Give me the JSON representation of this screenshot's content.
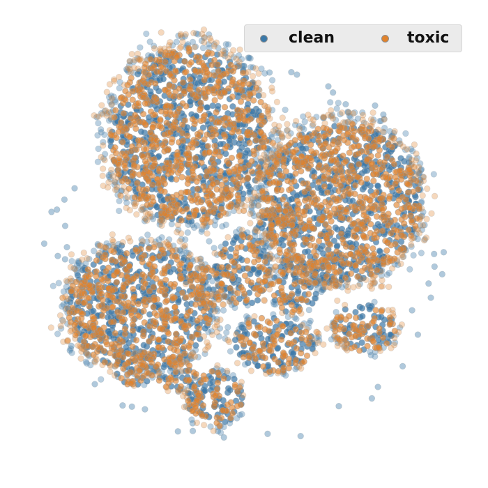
{
  "chart_data": {
    "type": "scatter",
    "title": "",
    "xlabel": "",
    "ylabel": "",
    "axes_visible": false,
    "grid": false,
    "legend_position": "top-right",
    "legend_columns": 2,
    "series": [
      {
        "name": "clean",
        "color": "#3a78a8",
        "edge_color": "#8a9aa6"
      },
      {
        "name": "toxic",
        "color": "#e0822c",
        "edge_color": "#9a9a9a"
      }
    ],
    "clusters": [
      {
        "x": 0.25,
        "y": 0.65,
        "rx": 0.18,
        "ry": 0.16,
        "density": 1.0
      },
      {
        "x": 0.37,
        "y": 0.24,
        "rx": 0.2,
        "ry": 0.22,
        "density": 1.0
      },
      {
        "x": 0.73,
        "y": 0.4,
        "rx": 0.2,
        "ry": 0.2,
        "density": 1.0
      },
      {
        "x": 0.43,
        "y": 0.87,
        "rx": 0.07,
        "ry": 0.07,
        "density": 0.9
      },
      {
        "x": 0.57,
        "y": 0.74,
        "rx": 0.1,
        "ry": 0.07,
        "density": 0.9
      },
      {
        "x": 0.79,
        "y": 0.7,
        "rx": 0.08,
        "ry": 0.06,
        "density": 0.9
      },
      {
        "x": 0.24,
        "y": 0.8,
        "rx": 0.05,
        "ry": 0.04,
        "density": 0.8
      },
      {
        "x": 0.34,
        "y": 0.81,
        "rx": 0.05,
        "ry": 0.04,
        "density": 0.8
      },
      {
        "x": 0.5,
        "y": 0.56,
        "rx": 0.07,
        "ry": 0.09,
        "density": 0.8
      },
      {
        "x": 0.62,
        "y": 0.6,
        "rx": 0.06,
        "ry": 0.07,
        "density": 0.8
      },
      {
        "x": 0.7,
        "y": 0.56,
        "rx": 0.04,
        "ry": 0.05,
        "density": 0.7
      },
      {
        "x": 0.58,
        "y": 0.45,
        "rx": 0.05,
        "ry": 0.04,
        "density": 0.7
      },
      {
        "x": 0.42,
        "y": 0.6,
        "rx": 0.06,
        "ry": 0.05,
        "density": 0.7
      }
    ]
  }
}
